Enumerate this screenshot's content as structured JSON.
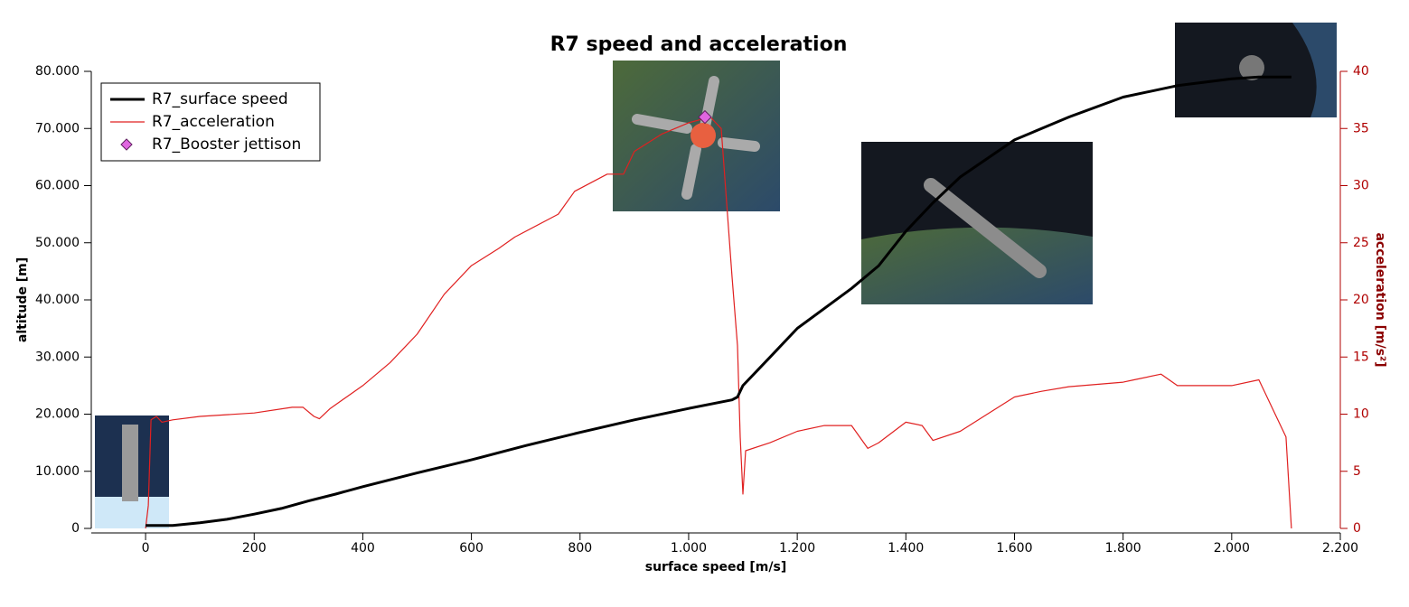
{
  "chart_data": {
    "type": "line",
    "title": "R7 speed and acceleration",
    "x_label": "surface speed [m/s]",
    "y_label": "altitude [m]",
    "y2_label": "acceleration [m/s²]",
    "xlim": [
      -100,
      2200
    ],
    "xticks": [
      0,
      200,
      400,
      600,
      800,
      {
        "value": 1000,
        "label": "1.000"
      },
      {
        "value": 1200,
        "label": "1.200"
      },
      {
        "value": 1400,
        "label": "1.400"
      },
      {
        "value": 1600,
        "label": "1.600"
      },
      {
        "value": 1800,
        "label": "1.800"
      },
      {
        "value": 2000,
        "label": "2.000"
      },
      {
        "value": 2200,
        "label": "2.200"
      }
    ],
    "ylim": [
      0,
      80000
    ],
    "yticks": [
      0,
      {
        "value": 10000,
        "label": "10.000"
      },
      {
        "value": 20000,
        "label": "20.000"
      },
      {
        "value": 30000,
        "label": "30.000"
      },
      {
        "value": 40000,
        "label": "40.000"
      },
      {
        "value": 50000,
        "label": "50.000"
      },
      {
        "value": 60000,
        "label": "60.000"
      },
      {
        "value": 70000,
        "label": "70.000"
      },
      {
        "value": 80000,
        "label": "80.000"
      }
    ],
    "y2lim": [
      0,
      40
    ],
    "y2ticks": [
      0,
      5,
      10,
      15,
      20,
      25,
      30,
      35,
      40
    ],
    "legend": "upper left",
    "series": [
      {
        "name": "R7_surface speed",
        "color": "#000000",
        "type": "line",
        "x": [
          0,
          50,
          100,
          150,
          200,
          250,
          300,
          350,
          400,
          500,
          600,
          700,
          800,
          900,
          1000,
          1080,
          1090,
          1100,
          1150,
          1200,
          1300,
          1350,
          1400,
          1450,
          1500,
          1600,
          1700,
          1800,
          1900,
          2000,
          2050,
          2110
        ],
        "values": [
          500,
          500,
          1000,
          1600,
          2500,
          3500,
          4800,
          6000,
          7300,
          9700,
          12000,
          14500,
          16800,
          19000,
          21000,
          22500,
          23000,
          25000,
          30000,
          35000,
          42000,
          46000,
          52000,
          57000,
          61500,
          68000,
          72000,
          75500,
          77500,
          78700,
          79000,
          79000
        ]
      },
      {
        "name": "R7_acceleration",
        "color": "#e02020",
        "type": "line",
        "axis": "y2",
        "x": [
          0,
          5,
          10,
          20,
          30,
          50,
          100,
          200,
          270,
          290,
          310,
          320,
          340,
          400,
          450,
          500,
          550,
          600,
          650,
          680,
          760,
          790,
          850,
          880,
          900,
          950,
          1000,
          1040,
          1060,
          1080,
          1090,
          1095,
          1100,
          1105,
          1150,
          1200,
          1250,
          1300,
          1330,
          1350,
          1400,
          1430,
          1450,
          1500,
          1550,
          1600,
          1650,
          1700,
          1800,
          1820,
          1870,
          1900,
          2000,
          2050,
          2080,
          2100,
          2105,
          2110
        ],
        "values": [
          0,
          2,
          9.5,
          9.8,
          9.3,
          9.5,
          9.8,
          10.1,
          10.6,
          10.6,
          9.8,
          9.6,
          10.5,
          12.5,
          14.5,
          17,
          20.5,
          23,
          24.5,
          25.5,
          27.5,
          29.5,
          31,
          31,
          33,
          34.5,
          35.5,
          36,
          35,
          22,
          16,
          8,
          3,
          6.8,
          7.5,
          8.5,
          9,
          9,
          7,
          7.5,
          9.3,
          9,
          7.7,
          8.5,
          10,
          11.5,
          12,
          12.4,
          12.8,
          13,
          13.5,
          12.5,
          12.5,
          13,
          10,
          8,
          4,
          0
        ]
      },
      {
        "name": "R7_Booster jettison",
        "color": "#e066e0",
        "type": "scatter",
        "x": [
          1030
        ],
        "values": [
          72000
        ]
      }
    ]
  }
}
